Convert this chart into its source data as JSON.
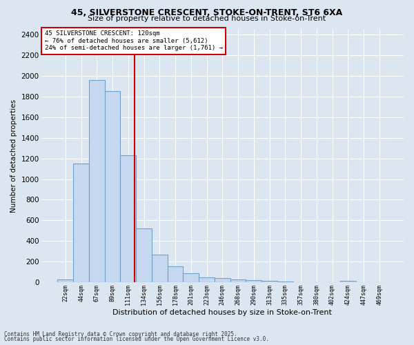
{
  "title1": "45, SILVERSTONE CRESCENT, STOKE-ON-TRENT, ST6 6XA",
  "title2": "Size of property relative to detached houses in Stoke-on-Trent",
  "xlabel": "Distribution of detached houses by size in Stoke-on-Trent",
  "ylabel": "Number of detached properties",
  "bar_labels": [
    "22sqm",
    "44sqm",
    "67sqm",
    "89sqm",
    "111sqm",
    "134sqm",
    "156sqm",
    "178sqm",
    "201sqm",
    "223sqm",
    "246sqm",
    "268sqm",
    "290sqm",
    "313sqm",
    "335sqm",
    "357sqm",
    "380sqm",
    "402sqm",
    "424sqm",
    "447sqm",
    "469sqm"
  ],
  "bar_values": [
    30,
    1150,
    1960,
    1850,
    1230,
    520,
    270,
    155,
    90,
    50,
    42,
    28,
    22,
    14,
    5,
    3,
    2,
    1,
    15,
    2,
    1
  ],
  "bar_color": "#c5d8f0",
  "bar_edge_color": "#6fa0cc",
  "bar_linewidth": 0.8,
  "vline_color": "#cc0000",
  "annotation_line1": "45 SILVERSTONE CRESCENT: 120sqm",
  "annotation_line2": "← 76% of detached houses are smaller (5,612)",
  "annotation_line3": "24% of semi-detached houses are larger (1,761) →",
  "annotation_box_color": "#ffffff",
  "annotation_box_edge": "#cc0000",
  "footer1": "Contains HM Land Registry data © Crown copyright and database right 2025.",
  "footer2": "Contains public sector information licensed under the Open Government Licence v3.0.",
  "bg_color": "#dce6f0",
  "plot_bg_color": "#dce6f0",
  "grid_color": "#ffffff",
  "ylim": [
    0,
    2450
  ],
  "yticks": [
    0,
    200,
    400,
    600,
    800,
    1000,
    1200,
    1400,
    1600,
    1800,
    2000,
    2200,
    2400
  ]
}
